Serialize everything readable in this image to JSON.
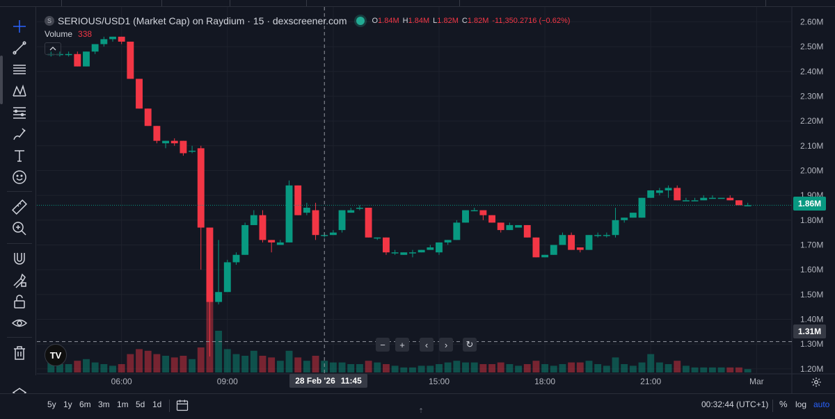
{
  "header": {
    "title": "SERIOUS/USD1 (Market Cap) on Raydium · 15 · dexscreener.com",
    "symbol_badge": "S",
    "ohlc": [
      {
        "k": "O",
        "v": "1.84M"
      },
      {
        "k": "H",
        "v": "1.84M"
      },
      {
        "k": "L",
        "v": "1.82M"
      },
      {
        "k": "C",
        "v": "1.82M"
      }
    ],
    "change": "-11,350.2716 (−0.62%)"
  },
  "volume": {
    "label": "Volume",
    "value": "338"
  },
  "price_labels": {
    "last": "1.86M",
    "crosshair": "1.31M"
  },
  "time_label": {
    "date": "28 Feb '26",
    "time": "11:45"
  },
  "nav": {
    "zoom_out": "−",
    "zoom_in": "+",
    "left": "‹",
    "right": "›",
    "reset": "↻"
  },
  "logo_text": "TV",
  "bottom": {
    "ranges": [
      "5y",
      "1y",
      "6m",
      "3m",
      "1m",
      "5d",
      "1d"
    ],
    "clock": "00:32:44 (UTC+1)",
    "percent": "%",
    "log": "log",
    "auto": "auto"
  },
  "colors": {
    "up": "#089981",
    "down": "#f23645",
    "background": "#131722",
    "grid": "#1e222d",
    "text": "#b2b5be"
  },
  "toolbar_icons": [
    "crosshair-icon",
    "trend-line-icon",
    "horizontal-lines-icon",
    "pattern-icon",
    "fib-icon",
    "brush-icon",
    "text-icon",
    "emoji-icon",
    "ruler-icon",
    "zoom-in-icon",
    "magnet-icon",
    "lock-drawing-icon",
    "lock-icon",
    "eye-icon",
    "trash-icon",
    "layers-icon"
  ],
  "chart_data": {
    "type": "candlestick",
    "title": "SERIOUS/USD1 (Market Cap) on Raydium · 15 · dexscreener.com",
    "x_ticks": [
      "06:00",
      "09:00",
      "12:00",
      "15:00",
      "18:00",
      "21:00",
      "Mar"
    ],
    "y_ticks": [
      "1.20M",
      "1.30M",
      "1.40M",
      "1.50M",
      "1.60M",
      "1.70M",
      "1.80M",
      "1.90M",
      "2.00M",
      "2.10M",
      "2.20M",
      "2.30M",
      "2.40M",
      "2.50M",
      "2.60M"
    ],
    "y_unit": "millions USD",
    "ylim": [
      1.18,
      2.66
    ],
    "xlim_hours": [
      3.6,
      25.0
    ],
    "last_price": 1.86,
    "crosshair": {
      "time": "28 Feb '26 11:45",
      "price": "1.31M"
    },
    "candles": [
      {
        "t": 4.0,
        "o": 2.47,
        "h": 2.48,
        "l": 2.46,
        "c": 2.47
      },
      {
        "t": 4.25,
        "o": 2.47,
        "h": 2.48,
        "l": 2.46,
        "c": 2.47
      },
      {
        "t": 4.5,
        "o": 2.47,
        "h": 2.48,
        "l": 2.46,
        "c": 2.47
      },
      {
        "t": 4.75,
        "o": 2.47,
        "h": 2.48,
        "l": 2.42,
        "c": 2.42
      },
      {
        "t": 5.0,
        "o": 2.42,
        "h": 2.48,
        "l": 2.42,
        "c": 2.48
      },
      {
        "t": 5.25,
        "o": 2.48,
        "h": 2.51,
        "l": 2.47,
        "c": 2.51
      },
      {
        "t": 5.5,
        "o": 2.51,
        "h": 2.54,
        "l": 2.5,
        "c": 2.53
      },
      {
        "t": 5.75,
        "o": 2.53,
        "h": 2.54,
        "l": 2.52,
        "c": 2.54
      },
      {
        "t": 6.0,
        "o": 2.54,
        "h": 2.54,
        "l": 2.51,
        "c": 2.52
      },
      {
        "t": 6.25,
        "o": 2.52,
        "h": 2.52,
        "l": 2.37,
        "c": 2.37
      },
      {
        "t": 6.5,
        "o": 2.37,
        "h": 2.37,
        "l": 2.25,
        "c": 2.25
      },
      {
        "t": 6.75,
        "o": 2.25,
        "h": 2.25,
        "l": 2.18,
        "c": 2.18
      },
      {
        "t": 7.0,
        "o": 2.18,
        "h": 2.18,
        "l": 2.11,
        "c": 2.12
      },
      {
        "t": 7.25,
        "o": 2.11,
        "h": 2.12,
        "l": 2.09,
        "c": 2.12
      },
      {
        "t": 7.5,
        "o": 2.12,
        "h": 2.13,
        "l": 2.1,
        "c": 2.11
      },
      {
        "t": 7.75,
        "o": 2.12,
        "h": 2.12,
        "l": 2.06,
        "c": 2.07
      },
      {
        "t": 8.0,
        "o": 2.08,
        "h": 2.1,
        "l": 2.07,
        "c": 2.08
      },
      {
        "t": 8.25,
        "o": 2.09,
        "h": 2.1,
        "l": 1.6,
        "c": 1.77
      },
      {
        "t": 8.5,
        "o": 1.77,
        "h": 1.77,
        "l": 1.25,
        "c": 1.47
      },
      {
        "t": 8.75,
        "o": 1.47,
        "h": 1.72,
        "l": 1.46,
        "c": 1.51
      },
      {
        "t": 9.0,
        "o": 1.51,
        "h": 1.64,
        "l": 1.51,
        "c": 1.63
      },
      {
        "t": 9.25,
        "o": 1.63,
        "h": 1.67,
        "l": 1.62,
        "c": 1.66
      },
      {
        "t": 9.5,
        "o": 1.66,
        "h": 1.79,
        "l": 1.66,
        "c": 1.78
      },
      {
        "t": 9.75,
        "o": 1.78,
        "h": 1.84,
        "l": 1.78,
        "c": 1.82
      },
      {
        "t": 10.0,
        "o": 1.82,
        "h": 1.84,
        "l": 1.71,
        "c": 1.72
      },
      {
        "t": 10.25,
        "o": 1.72,
        "h": 1.72,
        "l": 1.67,
        "c": 1.71
      },
      {
        "t": 10.5,
        "o": 1.7,
        "h": 1.72,
        "l": 1.7,
        "c": 1.71
      },
      {
        "t": 10.75,
        "o": 1.71,
        "h": 1.96,
        "l": 1.71,
        "c": 1.94
      },
      {
        "t": 11.0,
        "o": 1.94,
        "h": 1.94,
        "l": 1.82,
        "c": 1.82
      },
      {
        "t": 11.25,
        "o": 1.83,
        "h": 1.87,
        "l": 1.82,
        "c": 1.85
      },
      {
        "t": 11.5,
        "o": 1.84,
        "h": 1.87,
        "l": 1.72,
        "c": 1.74
      },
      {
        "t": 11.75,
        "o": 1.74,
        "h": 1.75,
        "l": 1.73,
        "c": 1.74
      },
      {
        "t": 12.0,
        "o": 1.74,
        "h": 1.76,
        "l": 1.74,
        "c": 1.75
      },
      {
        "t": 12.25,
        "o": 1.76,
        "h": 1.84,
        "l": 1.75,
        "c": 1.84
      },
      {
        "t": 12.5,
        "o": 1.83,
        "h": 1.85,
        "l": 1.83,
        "c": 1.84
      },
      {
        "t": 12.75,
        "o": 1.85,
        "h": 1.86,
        "l": 1.84,
        "c": 1.85
      },
      {
        "t": 13.0,
        "o": 1.85,
        "h": 1.85,
        "l": 1.73,
        "c": 1.73
      },
      {
        "t": 13.25,
        "o": 1.73,
        "h": 1.73,
        "l": 1.72,
        "c": 1.73
      },
      {
        "t": 13.5,
        "o": 1.73,
        "h": 1.73,
        "l": 1.66,
        "c": 1.67
      },
      {
        "t": 13.75,
        "o": 1.67,
        "h": 1.68,
        "l": 1.66,
        "c": 1.67
      },
      {
        "t": 14.0,
        "o": 1.66,
        "h": 1.67,
        "l": 1.66,
        "c": 1.67
      },
      {
        "t": 14.25,
        "o": 1.67,
        "h": 1.68,
        "l": 1.65,
        "c": 1.67
      },
      {
        "t": 14.5,
        "o": 1.67,
        "h": 1.68,
        "l": 1.67,
        "c": 1.68
      },
      {
        "t": 14.75,
        "o": 1.68,
        "h": 1.7,
        "l": 1.68,
        "c": 1.69
      },
      {
        "t": 15.0,
        "o": 1.67,
        "h": 1.71,
        "l": 1.66,
        "c": 1.71
      },
      {
        "t": 15.25,
        "o": 1.71,
        "h": 1.72,
        "l": 1.7,
        "c": 1.72
      },
      {
        "t": 15.5,
        "o": 1.72,
        "h": 1.8,
        "l": 1.72,
        "c": 1.79
      },
      {
        "t": 15.75,
        "o": 1.79,
        "h": 1.84,
        "l": 1.79,
        "c": 1.84
      },
      {
        "t": 16.0,
        "o": 1.84,
        "h": 1.85,
        "l": 1.84,
        "c": 1.84
      },
      {
        "t": 16.25,
        "o": 1.84,
        "h": 1.84,
        "l": 1.8,
        "c": 1.82
      },
      {
        "t": 16.5,
        "o": 1.82,
        "h": 1.82,
        "l": 1.79,
        "c": 1.79
      },
      {
        "t": 16.75,
        "o": 1.79,
        "h": 1.79,
        "l": 1.75,
        "c": 1.76
      },
      {
        "t": 17.0,
        "o": 1.76,
        "h": 1.79,
        "l": 1.76,
        "c": 1.78
      },
      {
        "t": 17.25,
        "o": 1.77,
        "h": 1.78,
        "l": 1.77,
        "c": 1.78
      },
      {
        "t": 17.5,
        "o": 1.78,
        "h": 1.78,
        "l": 1.73,
        "c": 1.73
      },
      {
        "t": 17.75,
        "o": 1.73,
        "h": 1.73,
        "l": 1.65,
        "c": 1.65
      },
      {
        "t": 18.0,
        "o": 1.65,
        "h": 1.66,
        "l": 1.65,
        "c": 1.66
      },
      {
        "t": 18.25,
        "o": 1.66,
        "h": 1.7,
        "l": 1.66,
        "c": 1.7
      },
      {
        "t": 18.5,
        "o": 1.7,
        "h": 1.75,
        "l": 1.7,
        "c": 1.74
      },
      {
        "t": 18.75,
        "o": 1.74,
        "h": 1.75,
        "l": 1.68,
        "c": 1.68
      },
      {
        "t": 19.0,
        "o": 1.69,
        "h": 1.69,
        "l": 1.67,
        "c": 1.68
      },
      {
        "t": 19.25,
        "o": 1.68,
        "h": 1.74,
        "l": 1.68,
        "c": 1.74
      },
      {
        "t": 19.5,
        "o": 1.74,
        "h": 1.75,
        "l": 1.73,
        "c": 1.74
      },
      {
        "t": 19.75,
        "o": 1.74,
        "h": 1.75,
        "l": 1.73,
        "c": 1.74
      },
      {
        "t": 20.0,
        "o": 1.74,
        "h": 1.85,
        "l": 1.73,
        "c": 1.8
      },
      {
        "t": 20.25,
        "o": 1.8,
        "h": 1.81,
        "l": 1.79,
        "c": 1.81
      },
      {
        "t": 20.5,
        "o": 1.81,
        "h": 1.83,
        "l": 1.81,
        "c": 1.83
      },
      {
        "t": 20.75,
        "o": 1.81,
        "h": 1.89,
        "l": 1.81,
        "c": 1.89
      },
      {
        "t": 21.0,
        "o": 1.89,
        "h": 1.92,
        "l": 1.89,
        "c": 1.92
      },
      {
        "t": 21.25,
        "o": 1.91,
        "h": 1.93,
        "l": 1.9,
        "c": 1.92
      },
      {
        "t": 21.5,
        "o": 1.92,
        "h": 1.94,
        "l": 1.89,
        "c": 1.93
      },
      {
        "t": 21.75,
        "o": 1.93,
        "h": 1.94,
        "l": 1.88,
        "c": 1.88
      },
      {
        "t": 22.0,
        "o": 1.88,
        "h": 1.89,
        "l": 1.88,
        "c": 1.88
      },
      {
        "t": 22.25,
        "o": 1.88,
        "h": 1.89,
        "l": 1.88,
        "c": 1.88
      },
      {
        "t": 22.5,
        "o": 1.88,
        "h": 1.9,
        "l": 1.88,
        "c": 1.89
      },
      {
        "t": 22.75,
        "o": 1.89,
        "h": 1.9,
        "l": 1.89,
        "c": 1.89
      },
      {
        "t": 23.0,
        "o": 1.89,
        "h": 1.89,
        "l": 1.89,
        "c": 1.89
      },
      {
        "t": 23.25,
        "o": 1.89,
        "h": 1.9,
        "l": 1.88,
        "c": 1.88
      },
      {
        "t": 23.5,
        "o": 1.88,
        "h": 1.88,
        "l": 1.86,
        "c": 1.86
      },
      {
        "t": 23.75,
        "o": 1.86,
        "h": 1.87,
        "l": 1.86,
        "c": 1.86
      }
    ],
    "volume_rel": [
      0.12,
      0.1,
      0.1,
      0.14,
      0.16,
      0.12,
      0.1,
      0.08,
      0.1,
      0.22,
      0.28,
      0.26,
      0.22,
      0.2,
      0.18,
      0.2,
      0.16,
      0.3,
      1.0,
      0.5,
      0.28,
      0.22,
      0.2,
      0.26,
      0.2,
      0.18,
      0.14,
      0.26,
      0.18,
      0.14,
      0.2,
      0.14,
      0.12,
      0.12,
      0.1,
      0.1,
      0.14,
      0.12,
      0.1,
      0.08,
      0.06,
      0.06,
      0.08,
      0.08,
      0.1,
      0.12,
      0.14,
      0.12,
      0.12,
      0.1,
      0.1,
      0.12,
      0.1,
      0.08,
      0.1,
      0.14,
      0.1,
      0.08,
      0.1,
      0.12,
      0.12,
      0.14,
      0.1,
      0.08,
      0.18,
      0.1,
      0.08,
      0.12,
      0.22,
      0.12,
      0.1,
      0.14,
      0.08,
      0.06,
      0.06,
      0.06,
      0.06,
      0.06,
      0.06,
      0.04
    ]
  }
}
